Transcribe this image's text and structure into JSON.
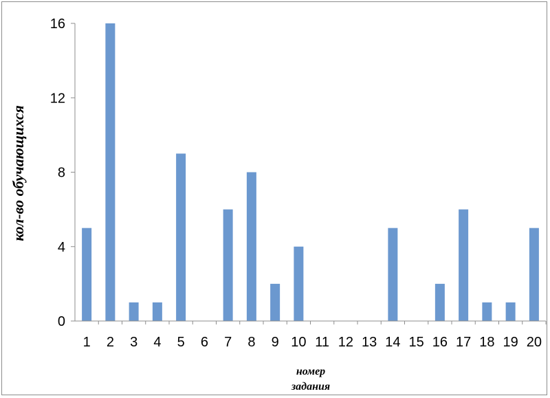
{
  "chart_data": {
    "type": "bar",
    "categories": [
      "1",
      "2",
      "3",
      "4",
      "5",
      "6",
      "7",
      "8",
      "9",
      "10",
      "11",
      "12",
      "13",
      "14",
      "15",
      "16",
      "17",
      "18",
      "19",
      "20"
    ],
    "values": [
      5,
      16,
      1,
      1,
      9,
      0,
      6,
      8,
      2,
      4,
      0,
      0,
      0,
      5,
      0,
      2,
      6,
      1,
      1,
      5
    ],
    "ylim": [
      0,
      16
    ],
    "yticks": [
      "0",
      "4",
      "8",
      "12",
      "16"
    ],
    "xlabel_line1": "номер",
    "xlabel_line2": "задания",
    "ylabel": "кол-во обучающихся",
    "bar_color": "#6b98cf",
    "grid": false
  }
}
